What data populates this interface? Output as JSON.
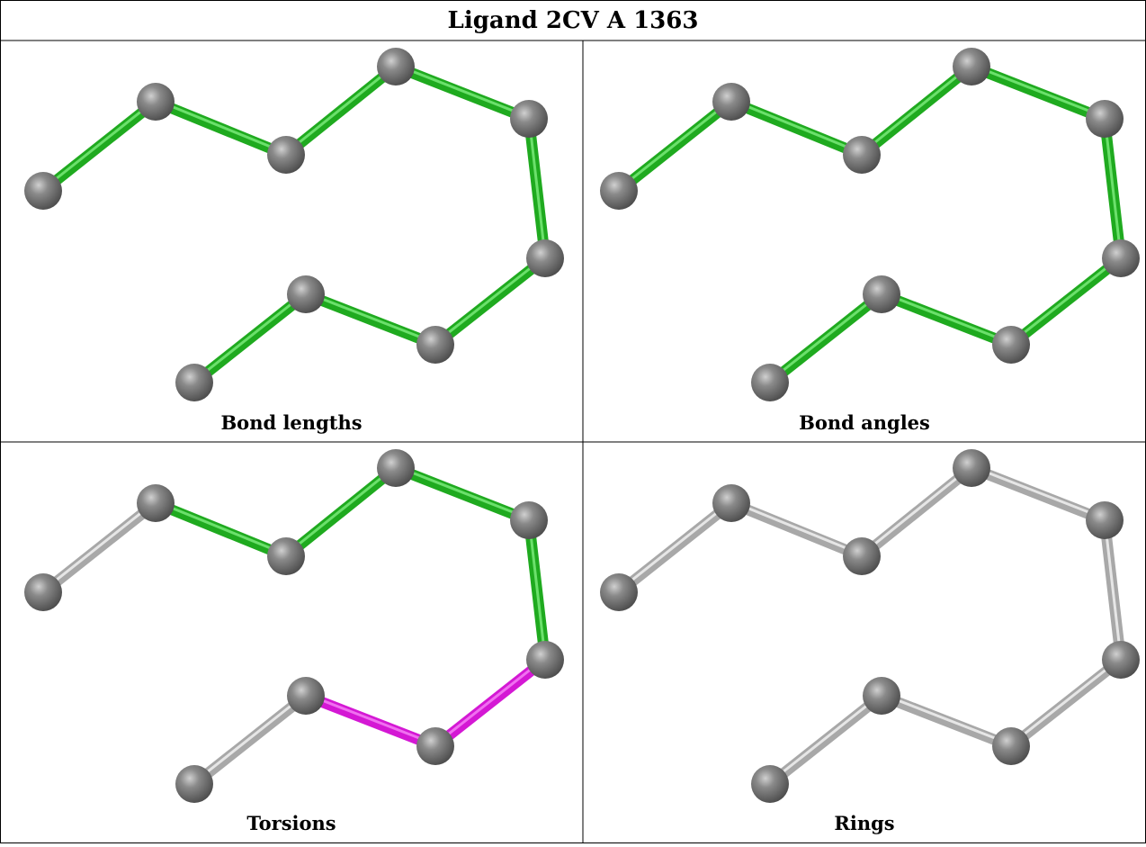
{
  "title": "Ligand 2CV A 1363",
  "panels": [
    {
      "label": "Bond lengths"
    },
    {
      "label": "Bond angles"
    },
    {
      "label": "Torsions"
    },
    {
      "label": "Rings"
    }
  ]
}
